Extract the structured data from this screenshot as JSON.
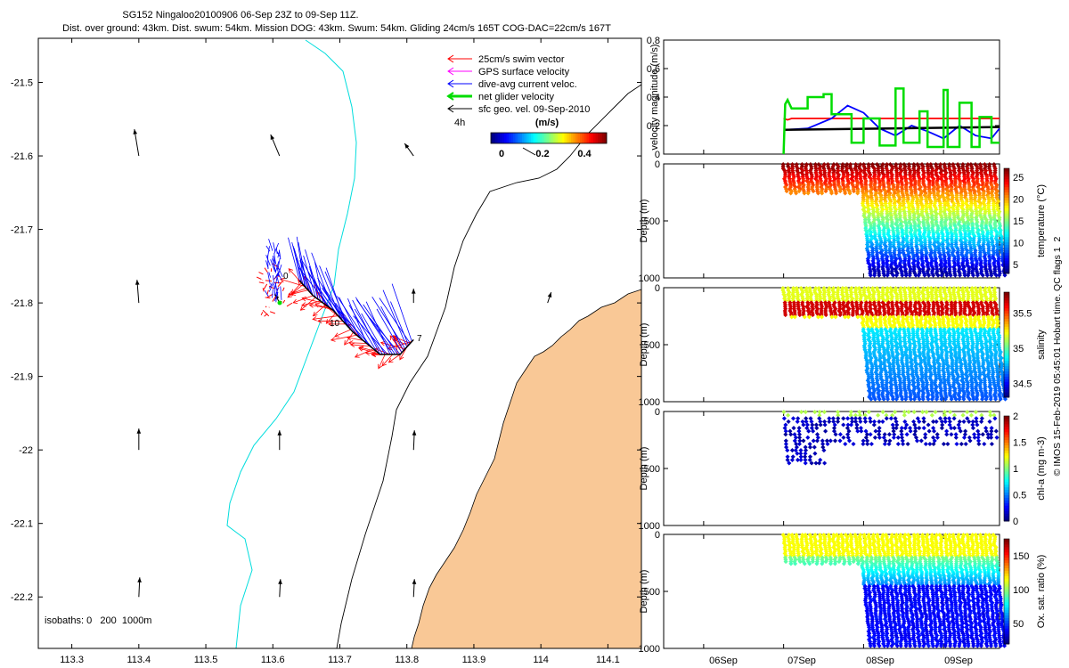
{
  "title": {
    "line1": "SG152 Ningaloo20100906 06-Sep 23Z to 09-Sep 11Z.",
    "line2": "Dist. over ground: 43km. Dist. swum: 54km. Mission DOG: 43km. Swum: 54km. Gliding 24cm/s 165T COG-DAC=22cm/s 167T"
  },
  "colors": {
    "land": "#f9c896",
    "isobath_200": "#000000",
    "isobath_1000": "#00dddd",
    "swim": "#ff0000",
    "gps": "#ff00ff",
    "dac": "#0000ff",
    "net": "#00dd00",
    "sfc": "#000000"
  },
  "chart_data": [
    {
      "type": "map",
      "name": "glider-track-map",
      "xlim": [
        113.25,
        114.15
      ],
      "ylim": [
        -22.27,
        -21.44
      ],
      "xticks": [
        "113.3",
        "113.4",
        "113.5",
        "113.6",
        "113.7",
        "113.8",
        "113.9",
        "114",
        "114.1"
      ],
      "yticks": [
        "-21.5",
        "-21.6",
        "-21.7",
        "-21.8",
        "-21.9",
        "-22",
        "-22.1",
        "-22.2"
      ],
      "legend": [
        {
          "label": "25cm/s swim vector",
          "color": "#ff0000"
        },
        {
          "label": "GPS surface velocity",
          "color": "#ff00ff"
        },
        {
          "label": "dive-avg current veloc.",
          "color": "#0000ff"
        },
        {
          "label": "net glider velocity",
          "color": "#00dd00"
        },
        {
          "label": "sfc geo. vel. 09-Sep-2010",
          "color": "#000000"
        }
      ],
      "legend_note": "4h",
      "colorbar": {
        "label": "(m/s)",
        "ticks": [
          "0",
          "0.2",
          "0.4"
        ],
        "range": [
          0,
          0.5
        ]
      },
      "isobath_label": "isobaths: 0   200  1000m",
      "track_labels": [
        "0",
        "10",
        "7"
      ],
      "track": [
        [
          113.64,
          -21.77
        ],
        [
          113.66,
          -21.79
        ],
        [
          113.69,
          -21.81
        ],
        [
          113.72,
          -21.84
        ],
        [
          113.76,
          -21.87
        ],
        [
          113.79,
          -21.87
        ],
        [
          113.81,
          -21.85
        ]
      ],
      "sfc_arrows": [
        {
          "lon": 113.4,
          "lat": -21.6,
          "u": -0.05,
          "v": 0.3
        },
        {
          "lon": 113.61,
          "lat": -21.6,
          "u": -0.1,
          "v": 0.24
        },
        {
          "lon": 113.81,
          "lat": -21.6,
          "u": -0.1,
          "v": 0.14
        },
        {
          "lon": 113.4,
          "lat": -21.8,
          "u": -0.02,
          "v": 0.26
        },
        {
          "lon": 113.61,
          "lat": -21.8,
          "u": -0.05,
          "v": 0.1
        },
        {
          "lon": 113.81,
          "lat": -21.8,
          "u": 0.0,
          "v": 0.16
        },
        {
          "lon": 114.01,
          "lat": -21.8,
          "u": 0.04,
          "v": 0.12
        },
        {
          "lon": 113.4,
          "lat": -22.0,
          "u": 0.0,
          "v": 0.24
        },
        {
          "lon": 113.61,
          "lat": -22.0,
          "u": 0.0,
          "v": 0.22
        },
        {
          "lon": 113.81,
          "lat": -22.0,
          "u": 0.01,
          "v": 0.22
        },
        {
          "lon": 113.4,
          "lat": -22.2,
          "u": 0.01,
          "v": 0.22
        },
        {
          "lon": 113.61,
          "lat": -22.2,
          "u": 0.01,
          "v": 0.2
        },
        {
          "lon": 113.81,
          "lat": -22.2,
          "u": 0.01,
          "v": 0.2
        }
      ]
    },
    {
      "type": "line",
      "name": "velocity-magnitude",
      "ylabel": "velocity magnitude (m/s)",
      "ylim": [
        0,
        0.8
      ],
      "yticks": [
        "0",
        "0.2",
        "0.4",
        "0.6",
        "0.8"
      ],
      "xlim": [
        5.5,
        9.7
      ],
      "series": [
        {
          "name": "swim",
          "color": "#ff0000",
          "x": [
            7.0,
            7.05,
            7.1,
            9.7
          ],
          "y": [
            0.25,
            0.24,
            0.25,
            0.25
          ]
        },
        {
          "name": "dac",
          "color": "#0000ff",
          "x": [
            7.0,
            7.3,
            7.6,
            7.8,
            8.0,
            8.2,
            8.4,
            8.6,
            8.8,
            9.0,
            9.2,
            9.4,
            9.6,
            9.7
          ],
          "y": [
            0.17,
            0.18,
            0.25,
            0.34,
            0.29,
            0.18,
            0.13,
            0.2,
            0.16,
            0.11,
            0.2,
            0.13,
            0.11,
            0.18
          ]
        },
        {
          "name": "sfc",
          "color": "#000000",
          "x": [
            7.0,
            9.7
          ],
          "y": [
            0.17,
            0.19
          ]
        },
        {
          "name": "net",
          "color": "#00dd00",
          "x": [
            7.0,
            7.02,
            7.05,
            7.1,
            7.3,
            7.3,
            7.5,
            7.5,
            7.6,
            7.6,
            7.85,
            7.85,
            8.0,
            8.0,
            8.2,
            8.2,
            8.4,
            8.4,
            8.5,
            8.5,
            8.7,
            8.7,
            8.8,
            8.8,
            9.0,
            9.0,
            9.05,
            9.05,
            9.2,
            9.2,
            9.35,
            9.35,
            9.45,
            9.45,
            9.6,
            9.6,
            9.7
          ],
          "y": [
            0.0,
            0.35,
            0.38,
            0.32,
            0.32,
            0.4,
            0.4,
            0.42,
            0.42,
            0.28,
            0.28,
            0.08,
            0.08,
            0.25,
            0.25,
            0.06,
            0.06,
            0.46,
            0.46,
            0.08,
            0.08,
            0.3,
            0.3,
            0.05,
            0.05,
            0.45,
            0.45,
            0.05,
            0.05,
            0.36,
            0.36,
            0.05,
            0.05,
            0.26,
            0.26,
            0.08,
            0.08
          ]
        }
      ]
    },
    {
      "type": "scatter",
      "name": "temperature",
      "ylabel": "Depth (m)",
      "yticks": [
        "0",
        "500",
        "1000"
      ],
      "ylim": [
        0,
        1000
      ],
      "cblabel": "temperature (°C)",
      "cbticks": [
        "5",
        "10",
        "15",
        "20",
        "25"
      ],
      "cbrange": [
        3,
        27
      ]
    },
    {
      "type": "scatter",
      "name": "salinity",
      "ylabel": "Depth (m)",
      "yticks": [
        "0",
        "500",
        "1000"
      ],
      "ylim": [
        0,
        1000
      ],
      "cblabel": "salinity",
      "cbticks": [
        "34.5",
        "35",
        "35.5"
      ],
      "cbrange": [
        34.3,
        35.8
      ]
    },
    {
      "type": "scatter",
      "name": "chlorophyll",
      "ylabel": "Depth (m)",
      "yticks": [
        "0",
        "500",
        "1000"
      ],
      "ylim": [
        0,
        1000
      ],
      "cblabel": "chl-a (mg m-3)",
      "cbticks": [
        "0",
        "0.5",
        "1",
        "1.5",
        "2"
      ],
      "cbrange": [
        0,
        2
      ]
    },
    {
      "type": "scatter",
      "name": "oxygen",
      "ylabel": "Depth (m)",
      "yticks": [
        "0",
        "500",
        "1000"
      ],
      "ylim": [
        0,
        1000
      ],
      "cblabel": "Ox. sat. ratio (%)",
      "cbticks": [
        "50",
        "100",
        "150"
      ],
      "cbrange": [
        20,
        175
      ]
    }
  ],
  "time_axis": {
    "ticks": [
      "06Sep",
      "07Sep",
      "08Sep",
      "09Sep"
    ],
    "values": [
      6,
      7,
      8,
      9
    ],
    "xlim": [
      5.5,
      9.7
    ]
  },
  "qc_note": "© IMOS 15-Feb-2019 05:45:01 Hobart time. QC flags 1  2"
}
